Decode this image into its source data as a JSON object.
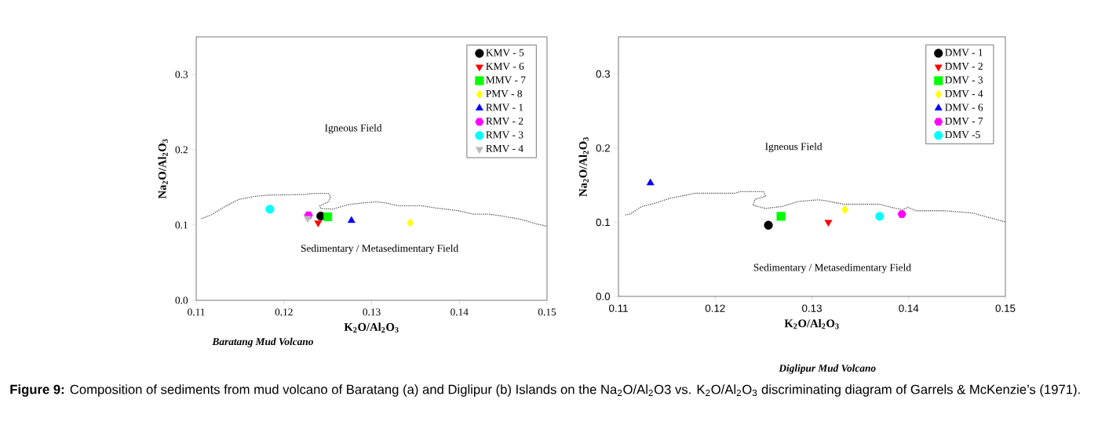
{
  "chart_data": [
    {
      "type": "scatter",
      "title": "Baratang Mud Volcano",
      "xlabel": "K$_{2}$O/Al$_{2}$O$_{3}$",
      "ylabel": "Na$_{2}$O/Al$_{2}$O$_{3}$",
      "xlim": [
        0.11,
        0.15
      ],
      "ylim": [
        0,
        0.35
      ],
      "xticks": [
        0.11,
        0.12,
        0.13,
        0.14,
        0.15
      ],
      "yticks": [
        {
          "value": 0,
          "label": "0.0"
        },
        0.1,
        0.2,
        0.3
      ],
      "legend": "top right",
      "annotations": [
        "Igneous Field",
        "Sedimentary / Metasedimentary Field",
        "**Figure 9:** Composition of sediments from mud volcano of Baratang (a) and Diglipur (b) Islands on the Na$_{2}$O/Al$_{2}$O3 vs. K$_{2}$O/Al$_{2}$O$_{3}$ discriminating diagram of Garrels & McKenzie’s (1971)."
      ],
      "series": [
        {
          "type": "line",
          "color": "#555555",
          "line_style": "dotted",
          "marker": "none",
          "x": [
            0.1106,
            0.1117,
            0.1131,
            0.1148,
            0.1168,
            0.1182,
            0.1222,
            0.1234,
            0.1251,
            0.1253,
            0.1251,
            0.1241,
            0.1242,
            0.1256,
            0.1273,
            0.129,
            0.1305,
            0.1316,
            0.133,
            0.1356,
            0.1373,
            0.1399,
            0.1416,
            0.1433,
            0.1447,
            0.1472,
            0.1489,
            0.15
          ],
          "values": [
            0.1086,
            0.1134,
            0.1234,
            0.1338,
            0.1383,
            0.1398,
            0.1405,
            0.142,
            0.142,
            0.1375,
            0.1309,
            0.1257,
            0.1219,
            0.1212,
            0.1271,
            0.1294,
            0.1309,
            0.1294,
            0.1257,
            0.1257,
            0.1227,
            0.119,
            0.1145,
            0.1145,
            0.1123,
            0.1071,
            0.1011,
            0.0985
          ]
        },
        {
          "name": "KMV - 5",
          "color": "#000000",
          "marker": "circle",
          "x": [
            0.1242
          ],
          "values": [
            0.112
          ]
        },
        {
          "name": "KMV - 6",
          "color": "#ff0000",
          "marker": "triangle-down",
          "x": [
            0.1239
          ],
          "values": [
            0.103
          ]
        },
        {
          "name": "MMV - 7",
          "color": "#00ff00",
          "marker": "square",
          "x": [
            0.125
          ],
          "values": [
            0.111
          ]
        },
        {
          "name": "PMV - 8",
          "color": "#ffff00",
          "marker": "diamond",
          "x": [
            0.1344
          ],
          "values": [
            0.103
          ]
        },
        {
          "name": "RMV - 1",
          "color": "#0000ff",
          "marker": "triangle",
          "x": [
            0.1277
          ],
          "values": [
            0.106
          ]
        },
        {
          "name": "RMV - 2",
          "color": "#ff00ff",
          "x": [
            0.1228
          ],
          "values": [
            0.113
          ]
        },
        {
          "name": "RMV - 3",
          "color": "#00ffff",
          "marker": "circle",
          "x": [
            0.1184
          ],
          "values": [
            0.121
          ]
        },
        {
          "name": "RMV - 4",
          "color": "#bbbbbb",
          "marker": "triangle-down",
          "x": [
            0.1227
          ],
          "values": [
            0.109
          ]
        }
      ]
    },
    {
      "type": "scatter",
      "title": "Diglipur Mud Volcano",
      "xlabel": "K$_{2}$O/Al$_{2}$O$_{3}$",
      "ylabel": "Na$_{2}$O/Al$_{2}$O$_{3}$",
      "xlim": [
        0.11,
        0.15
      ],
      "ylim": [
        0,
        0.35
      ],
      "xticks": [
        0.11,
        0.12,
        0.13,
        0.14,
        0.15
      ],
      "yticks": [
        {
          "value": 0,
          "label": "0.0"
        },
        0.1,
        0.2,
        0.3
      ],
      "legend": "top right",
      "annotations": [
        "Igneous Field",
        "Sedimentary / Metasedimentary Field"
      ],
      "series": [
        {
          "type": "line",
          "color": "#555555",
          "line_style": "dotted",
          "marker": "none",
          "x": [
            0.1107,
            0.1112,
            0.1124,
            0.1136,
            0.1153,
            0.1179,
            0.122,
            0.1226,
            0.125,
            0.1252,
            0.1241,
            0.1239,
            0.1252,
            0.1269,
            0.1286,
            0.1307,
            0.1315,
            0.1333,
            0.137,
            0.1382,
            0.1394,
            0.1399,
            0.1408,
            0.1437,
            0.1466,
            0.1483,
            0.15
          ],
          "values": [
            0.1098,
            0.111,
            0.1212,
            0.125,
            0.1322,
            0.139,
            0.139,
            0.1413,
            0.1413,
            0.1352,
            0.1307,
            0.1231,
            0.1186,
            0.1212,
            0.128,
            0.1303,
            0.1288,
            0.1242,
            0.1242,
            0.1201,
            0.117,
            0.1201,
            0.1155,
            0.1155,
            0.1125,
            0.1064,
            0.1004
          ]
        },
        {
          "name": "DMV - 1",
          "color": "#000000",
          "marker": "circle",
          "x": [
            0.1255
          ],
          "values": [
            0.096
          ]
        },
        {
          "name": "DMV - 2",
          "color": "#ff0000",
          "marker": "triangle-down",
          "x": [
            0.1317
          ],
          "values": [
            0.1
          ]
        },
        {
          "name": "DMV - 3",
          "color": "#00ff00",
          "marker": "square",
          "x": [
            0.1268
          ],
          "values": [
            0.108
          ]
        },
        {
          "name": "DMV - 4",
          "color": "#ffff00",
          "marker": "diamond",
          "x": [
            0.1334
          ],
          "values": [
            0.117
          ]
        },
        {
          "name": "DMV - 6",
          "color": "#0000ff",
          "marker": "triangle",
          "x": [
            0.1133
          ],
          "values": [
            0.153
          ]
        },
        {
          "name": "DMV - 7",
          "color": "#ff00ff",
          "x": [
            0.1393
          ],
          "values": [
            0.111
          ]
        },
        {
          "name": "DMV -5",
          "color": "#00ffff",
          "marker": "circle",
          "x": [
            0.137
          ],
          "values": [
            0.108
          ]
        }
      ]
    }
  ]
}
